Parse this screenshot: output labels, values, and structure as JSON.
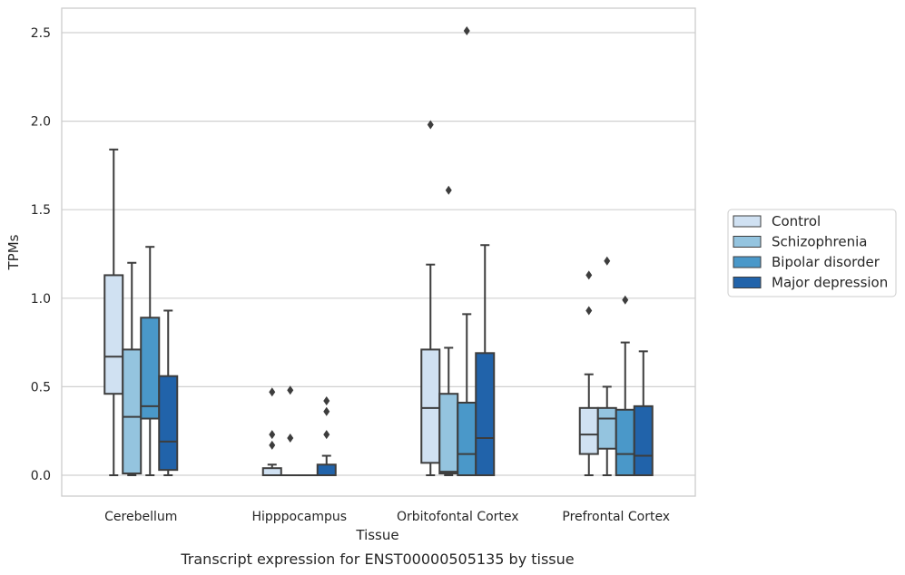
{
  "chart_data": {
    "type": "boxplot",
    "title": "",
    "caption": "Transcript expression for ENST00000505135 by tissue",
    "xlabel": "Tissue",
    "ylabel": "TPMs",
    "ylim": [
      -0.12,
      2.6
    ],
    "yticks": [
      "0.0",
      "0.5",
      "1.0",
      "1.5",
      "2.0",
      "2.5"
    ],
    "grid": "horizontal",
    "legend_position": "right",
    "categories": [
      "Cerebellum",
      "Hipppocampus",
      "Orbitofontal Cortex",
      "Prefrontal Cortex"
    ],
    "series": [
      {
        "name": "Control",
        "color": "#d0e1f2",
        "boxes": [
          {
            "whisker_low": 0.0,
            "q1": 0.46,
            "median": 0.67,
            "q3": 1.13,
            "whisker_high": 1.84,
            "outliers": []
          },
          {
            "whisker_low": 0.0,
            "q1": 0.0,
            "median": 0.0,
            "q3": 0.04,
            "whisker_high": 0.06,
            "outliers": [
              0.47,
              0.23,
              0.17
            ]
          },
          {
            "whisker_low": 0.0,
            "q1": 0.07,
            "median": 0.38,
            "q3": 0.71,
            "whisker_high": 1.19,
            "outliers": [
              1.98
            ]
          },
          {
            "whisker_low": 0.0,
            "q1": 0.12,
            "median": 0.23,
            "q3": 0.38,
            "whisker_high": 0.57,
            "outliers": [
              1.13,
              0.93
            ]
          }
        ]
      },
      {
        "name": "Schizophrenia",
        "color": "#94c4df",
        "boxes": [
          {
            "whisker_low": 0.0,
            "q1": 0.01,
            "median": 0.33,
            "q3": 0.71,
            "whisker_high": 1.2,
            "outliers": []
          },
          {
            "whisker_low": 0.0,
            "q1": 0.0,
            "median": 0.0,
            "q3": 0.0,
            "whisker_high": 0.0,
            "outliers": [
              0.48,
              0.21
            ]
          },
          {
            "whisker_low": 0.0,
            "q1": 0.01,
            "median": 0.02,
            "q3": 0.46,
            "whisker_high": 0.72,
            "outliers": [
              1.61
            ]
          },
          {
            "whisker_low": 0.0,
            "q1": 0.15,
            "median": 0.32,
            "q3": 0.38,
            "whisker_high": 0.5,
            "outliers": [
              1.21
            ]
          }
        ]
      },
      {
        "name": "Bipolar disorder",
        "color": "#4a98c9",
        "boxes": [
          {
            "whisker_low": 0.0,
            "q1": 0.32,
            "median": 0.39,
            "q3": 0.89,
            "whisker_high": 1.29,
            "outliers": []
          },
          {
            "whisker_low": 0.0,
            "q1": 0.0,
            "median": 0.0,
            "q3": 0.0,
            "whisker_high": 0.0,
            "outliers": []
          },
          {
            "whisker_low": 0.0,
            "q1": 0.0,
            "median": 0.12,
            "q3": 0.41,
            "whisker_high": 0.91,
            "outliers": [
              2.51
            ]
          },
          {
            "whisker_low": 0.0,
            "q1": 0.0,
            "median": 0.12,
            "q3": 0.37,
            "whisker_high": 0.75,
            "outliers": [
              0.99
            ]
          }
        ]
      },
      {
        "name": "Major depression",
        "color": "#2163aa",
        "boxes": [
          {
            "whisker_low": 0.0,
            "q1": 0.03,
            "median": 0.19,
            "q3": 0.56,
            "whisker_high": 0.93,
            "outliers": []
          },
          {
            "whisker_low": 0.0,
            "q1": 0.0,
            "median": 0.0,
            "q3": 0.06,
            "whisker_high": 0.11,
            "outliers": [
              0.42,
              0.36,
              0.23
            ]
          },
          {
            "whisker_low": 0.0,
            "q1": 0.0,
            "median": 0.21,
            "q3": 0.69,
            "whisker_high": 1.3,
            "outliers": []
          },
          {
            "whisker_low": 0.0,
            "q1": 0.0,
            "median": 0.11,
            "q3": 0.39,
            "whisker_high": 0.7,
            "outliers": []
          }
        ]
      }
    ]
  }
}
